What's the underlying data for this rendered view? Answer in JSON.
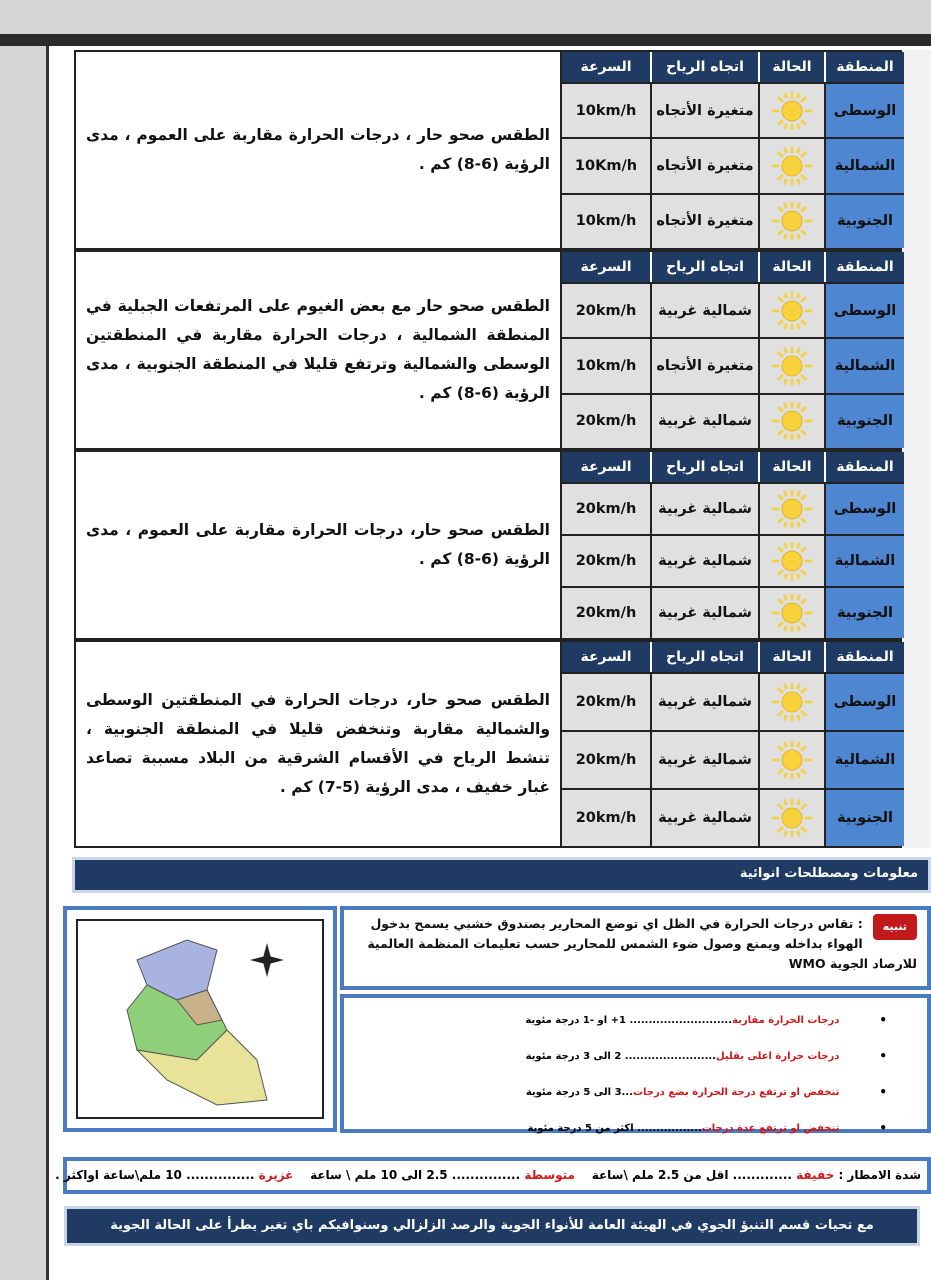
{
  "headers": {
    "region": "المنطقة",
    "state": "الحالة",
    "wind_dir": "اتجاه الرياح",
    "speed": "السرعة"
  },
  "days": [
    {
      "desc": "الطقس صحو حار ، درجات الحرارة مقاربة على العموم ، مدى الرؤية (6-8) كم .",
      "rows": [
        {
          "region": "الوسطى",
          "state": "sunny",
          "dir": "متغيرة الأتجاه",
          "speed": "10km/h"
        },
        {
          "region": "الشمالية",
          "state": "sunny",
          "dir": "متغيرة الأتجاه",
          "speed": "10Km/h"
        },
        {
          "region": "الجنوبية",
          "state": "sunny",
          "dir": "متغيرة الأتجاه",
          "speed": "10km/h"
        }
      ]
    },
    {
      "desc": "الطقس صحو حار مع بعض الغيوم على المرتفعات الجبلية في المنطقة الشمالية ، درجات الحرارة مقاربة في المنطقتين الوسطى والشمالية وترتفع قليلا في المنطقة الجنوبية ، مدى الرؤية (6-8) كم .",
      "rows": [
        {
          "region": "الوسطى",
          "state": "sunny",
          "dir": "شمالية غربية",
          "speed": "20km/h"
        },
        {
          "region": "الشمالية",
          "state": "sunny",
          "dir": "متغيرة الأتجاه",
          "speed": "10km/h"
        },
        {
          "region": "الجنوبية",
          "state": "sunny",
          "dir": "شمالية غربية",
          "speed": "20km/h"
        }
      ]
    },
    {
      "desc": "الطقس صحو حار، درجات الحرارة مقاربة على العموم ، مدى الرؤية (6-8) كم .",
      "rows": [
        {
          "region": "الوسطى",
          "state": "sunny",
          "dir": "شمالية غربية",
          "speed": "20km/h"
        },
        {
          "region": "الشمالية",
          "state": "sunny",
          "dir": "شمالية غربية",
          "speed": "20km/h"
        },
        {
          "region": "الجنوبية",
          "state": "sunny",
          "dir": "شمالية غربية",
          "speed": "20km/h"
        }
      ]
    },
    {
      "desc": "الطقس صحو حار، درجات الحرارة في المنطقتين الوسطى والشمالية مقاربة وتنخفض قليلا في المنطقة الجنوبية ، تنشط الرياح في الأقسام الشرقية من البلاد مسببة تصاعد غبار خفيف ، مدى الرؤية (5-7) كم .",
      "rows": [
        {
          "region": "الوسطى",
          "state": "sunny",
          "dir": "شمالية غربية",
          "speed": "20km/h"
        },
        {
          "region": "الشمالية",
          "state": "sunny",
          "dir": "شمالية غربية",
          "speed": "20km/h"
        },
        {
          "region": "الجنوبية",
          "state": "sunny",
          "dir": "شمالية غربية",
          "speed": "20km/h"
        }
      ]
    }
  ],
  "section_title": "معلومات ومصطلحات انوائية",
  "notice": {
    "badge": "تنبيه",
    "text": ": تقاس درجات الحرارة في الظل اي توضع المحارير بصندوق خشبي يسمح بدخول الهواء بداخله ويمنع وصول ضوء الشمس للمحارير حسب تعليمات المنظمة العالمية للارصاد الجوية WMO"
  },
  "terms": [
    {
      "term": "درجات الحرارة مقاربة",
      "value": "........................... 1+ او -1 درجة مئوية"
    },
    {
      "term": "درجات حرارة اعلى بقليل",
      "value": "........................ 2 الى 3 درجة مئوية"
    },
    {
      "term": "تنخفض او ترتفع درجة الحرارة بضع درجات",
      "value": "...3 الى 5 درجة مئوية"
    },
    {
      "term": "تنخفض او ترتفع عدة درجات",
      "value": " ................. اكثر من 5 درجة مئوية"
    }
  ],
  "rain": {
    "label": "شدة الامطار :",
    "light": "خفيفة",
    "light_val": "............. اقل من 2.5 ملم \\ساعة",
    "moderate": "متوسطة",
    "moderate_val": "............... 2.5 الى 10 ملم \\ ساعة",
    "heavy": "غزيرة",
    "heavy_val": "............... 10 ملم\\ساعة اواكثر ."
  },
  "footer": "مع تحيات قسم التنبؤ الجوي في الهيئة العامة للأنواء الجوية والرصد الزلزالي وسنوافيكم باي تغير يطرأ على الحالة الجوية",
  "colors": {
    "header": "#1f3a63",
    "region_cell": "#4f86d1",
    "accent_red": "#d01818",
    "border_blue": "#4a7abf"
  }
}
